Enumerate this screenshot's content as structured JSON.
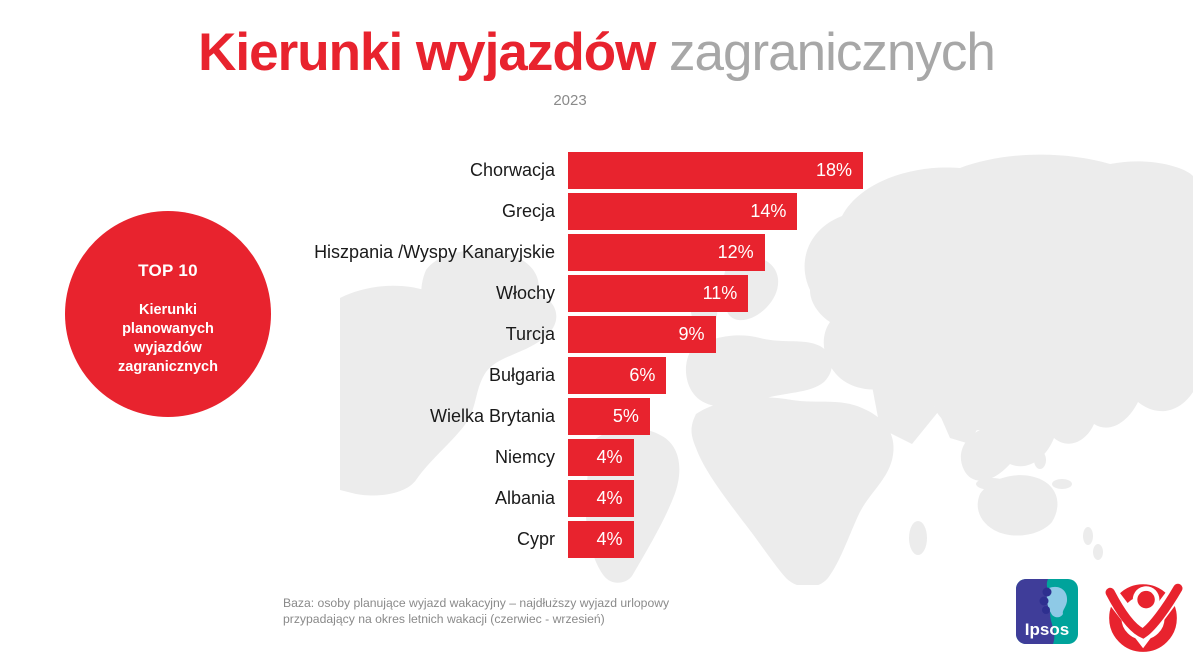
{
  "title": {
    "highlight": "Kierunki wyjazdów",
    "rest": " zagranicznych",
    "year": "2023"
  },
  "badge": {
    "heading": "TOP 10",
    "body": "Kierunki planowanych wyjazdów zagranicznych"
  },
  "chart_data": {
    "type": "bar",
    "orientation": "horizontal",
    "title": "Kierunki wyjazdów zagranicznych",
    "subtitle": "2023",
    "categories": [
      "Chorwacja",
      "Grecja",
      "Hiszpania /Wyspy Kanaryjskie",
      "Włochy",
      "Turcja",
      "Bułgaria",
      "Wielka Brytania",
      "Niemcy",
      "Albania",
      "Cypr"
    ],
    "values": [
      18,
      14,
      12,
      11,
      9,
      6,
      5,
      4,
      4,
      4
    ],
    "value_labels": [
      "18%",
      "14%",
      "12%",
      "11%",
      "9%",
      "6%",
      "5%",
      "4%",
      "4%",
      "4%"
    ],
    "unit": "%",
    "xlim": [
      0,
      18
    ],
    "grid": false,
    "legend": false,
    "bar_color": "#e8232e",
    "value_label_position": "inside-end"
  },
  "footnote": {
    "line1": "Baza: osoby planujące wyjazd wakacyjny – najdłuższy wyjazd urlopowy",
    "line2": "przypadający na okres letnich wakacji (czerwiec - wrzesień)"
  },
  "logos": {
    "ipsos_label": "Ipsos",
    "partner_emblem": "red-circle-person-checkmark"
  },
  "colors": {
    "accent_red": "#e8232e",
    "title_gray": "#a7a7a7",
    "map_gray": "#ececec",
    "footnote_gray": "#8a8a8a",
    "ipsos_indigo": "#3f3d99",
    "ipsos_teal": "#00a39b"
  }
}
